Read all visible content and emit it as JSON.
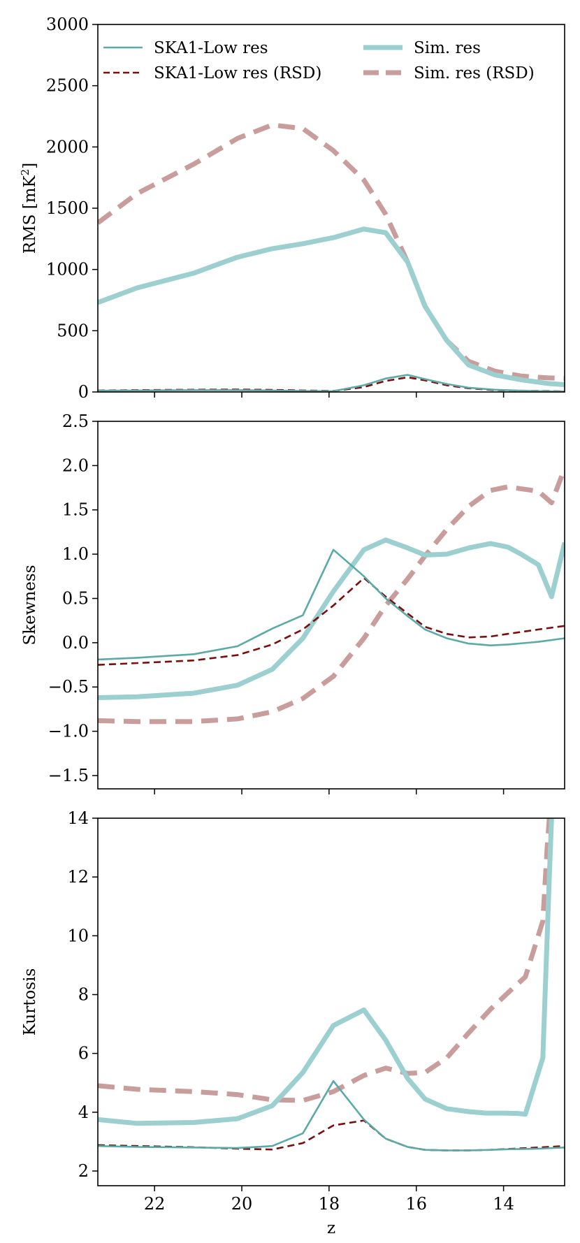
{
  "chart_data": {
    "type": "line",
    "x_label": "z",
    "x_range": [
      23.3,
      12.6
    ],
    "x_ticks": [
      22,
      20,
      18,
      16,
      14
    ],
    "legend": {
      "placement": "top",
      "entries": [
        {
          "label": "SKA1-Low res",
          "series": "ska"
        },
        {
          "label": "Sim. res",
          "series": "sim"
        },
        {
          "label": "SKA1-Low res (RSD)",
          "series": "ska_rsd"
        },
        {
          "label": "Sim. res (RSD)",
          "series": "sim_rsd"
        }
      ]
    },
    "styles": {
      "ska": {
        "color": "#5aaaa8",
        "dash": "",
        "width": 2.6
      },
      "ska_rsd": {
        "color": "#7b0d0d",
        "dash": "10,6",
        "width": 2.6
      },
      "sim": {
        "color": "#9ccfd0",
        "dash": "",
        "width": 7
      },
      "sim_rsd": {
        "color": "#c99d9b",
        "dash": "24,13",
        "width": 7
      }
    },
    "panels": [
      {
        "id": "rms",
        "ylabel_main": "RMS [mK",
        "ylabel_sup": "2",
        "ylabel_tail": "]",
        "ylim": [
          0,
          3000
        ],
        "yticks": [
          0,
          500,
          1000,
          1500,
          2000,
          2500,
          3000
        ],
        "series": [
          {
            "key": "sim_rsd",
            "x": [
              23.3,
              22.4,
              21.1,
              20.1,
              19.3,
              18.6,
              17.9,
              17.2,
              16.7,
              16.2,
              15.8,
              15.3,
              14.8,
              14.2,
              13.6,
              13.0,
              12.6
            ],
            "y": [
              1380,
              1620,
              1860,
              2070,
              2180,
              2150,
              1970,
              1730,
              1450,
              1060,
              700,
              420,
              250,
              170,
              130,
              115,
              110
            ]
          },
          {
            "key": "sim",
            "x": [
              23.3,
              22.4,
              21.1,
              20.1,
              19.3,
              18.6,
              17.9,
              17.2,
              16.7,
              16.2,
              15.8,
              15.3,
              14.8,
              14.2,
              13.6,
              13.0,
              12.6
            ],
            "y": [
              730,
              850,
              970,
              1100,
              1170,
              1210,
              1260,
              1330,
              1300,
              1060,
              700,
              420,
              220,
              140,
              100,
              70,
              60
            ]
          },
          {
            "key": "ska_rsd",
            "x": [
              23.3,
              22.4,
              21.1,
              20.1,
              19.3,
              18.6,
              17.9,
              17.2,
              16.7,
              16.2,
              15.8,
              15.3,
              14.8,
              14.2,
              13.6,
              13.0,
              12.6
            ],
            "y": [
              12,
              15,
              18,
              20,
              17,
              12,
              8,
              40,
              90,
              120,
              95,
              55,
              30,
              15,
              10,
              8,
              5
            ]
          },
          {
            "key": "ska",
            "x": [
              23.3,
              22.4,
              21.1,
              20.1,
              19.3,
              18.6,
              17.9,
              17.2,
              16.7,
              16.2,
              15.8,
              15.3,
              14.8,
              14.2,
              13.6,
              13.0,
              12.6
            ],
            "y": [
              10,
              12,
              15,
              15,
              12,
              8,
              6,
              55,
              110,
              140,
              105,
              65,
              35,
              18,
              10,
              6,
              4
            ]
          }
        ]
      },
      {
        "id": "skew",
        "ylabel_main": "Skewness",
        "ylim": [
          -1.65,
          2.5
        ],
        "yticks": [
          -1.5,
          -1.0,
          -0.5,
          0.0,
          0.5,
          1.0,
          1.5,
          2.0,
          2.5
        ],
        "series": [
          {
            "key": "sim_rsd",
            "x": [
              23.3,
              22.4,
              21.1,
              20.1,
              19.3,
              18.6,
              17.9,
              17.2,
              16.7,
              16.2,
              15.8,
              15.3,
              14.8,
              14.3,
              13.9,
              13.2,
              12.9,
              12.6
            ],
            "y": [
              -0.88,
              -0.89,
              -0.89,
              -0.86,
              -0.78,
              -0.63,
              -0.38,
              0.05,
              0.42,
              0.72,
              0.98,
              1.28,
              1.54,
              1.72,
              1.76,
              1.71,
              1.58,
              1.97
            ]
          },
          {
            "key": "sim",
            "x": [
              23.3,
              22.4,
              21.1,
              20.1,
              19.3,
              18.6,
              17.9,
              17.2,
              16.7,
              16.2,
              15.8,
              15.3,
              14.8,
              14.3,
              13.9,
              13.6,
              13.2,
              12.9,
              12.6
            ],
            "y": [
              -0.62,
              -0.61,
              -0.57,
              -0.48,
              -0.3,
              0.05,
              0.58,
              1.05,
              1.16,
              1.07,
              0.99,
              1.0,
              1.07,
              1.12,
              1.08,
              1.0,
              0.88,
              0.52,
              1.13
            ]
          },
          {
            "key": "ska_rsd",
            "x": [
              23.3,
              22.4,
              21.1,
              20.1,
              19.3,
              18.6,
              17.9,
              17.2,
              16.7,
              16.2,
              15.8,
              15.3,
              14.8,
              14.3,
              13.9,
              13.2,
              12.6
            ],
            "y": [
              -0.25,
              -0.23,
              -0.2,
              -0.14,
              -0.02,
              0.15,
              0.42,
              0.73,
              0.52,
              0.33,
              0.18,
              0.1,
              0.06,
              0.07,
              0.1,
              0.15,
              0.19
            ]
          },
          {
            "key": "ska",
            "x": [
              23.3,
              22.4,
              21.1,
              20.1,
              19.3,
              18.6,
              17.9,
              17.2,
              16.7,
              16.2,
              15.8,
              15.3,
              14.8,
              14.3,
              13.9,
              13.2,
              12.6
            ],
            "y": [
              -0.19,
              -0.17,
              -0.13,
              -0.04,
              0.16,
              0.31,
              1.05,
              0.75,
              0.5,
              0.3,
              0.15,
              0.05,
              -0.01,
              -0.03,
              -0.02,
              0.01,
              0.05
            ]
          }
        ]
      },
      {
        "id": "kurt",
        "ylabel_main": "Kurtosis",
        "ylim": [
          1.5,
          14
        ],
        "yticks": [
          2,
          4,
          6,
          8,
          10,
          12,
          14
        ],
        "series": [
          {
            "key": "sim_rsd",
            "x": [
              23.3,
              22.4,
              21.1,
              20.1,
              19.3,
              18.6,
              17.9,
              17.2,
              16.7,
              16.2,
              15.8,
              15.3,
              14.8,
              14.3,
              13.8,
              13.5,
              13.1,
              13.0,
              12.95
            ],
            "y": [
              4.9,
              4.78,
              4.7,
              4.6,
              4.42,
              4.4,
              4.7,
              5.25,
              5.5,
              5.32,
              5.35,
              5.85,
              6.7,
              7.5,
              8.2,
              8.6,
              10.5,
              13.0,
              14
            ]
          },
          {
            "key": "sim",
            "x": [
              23.3,
              22.4,
              21.1,
              20.1,
              19.3,
              18.6,
              17.9,
              17.2,
              16.7,
              16.2,
              15.8,
              15.3,
              14.8,
              14.4,
              14.0,
              13.7,
              13.5,
              13.1,
              12.95,
              12.9
            ],
            "y": [
              3.75,
              3.62,
              3.65,
              3.78,
              4.22,
              5.35,
              6.95,
              7.48,
              6.45,
              5.15,
              4.45,
              4.12,
              4.02,
              3.97,
              3.97,
              3.96,
              3.93,
              5.85,
              12.0,
              14
            ]
          },
          {
            "key": "ska_rsd",
            "x": [
              23.3,
              22.4,
              21.1,
              20.1,
              19.3,
              18.6,
              17.9,
              17.2,
              16.7,
              16.2,
              15.8,
              15.3,
              14.8,
              14.3,
              13.9,
              13.2,
              12.6
            ],
            "y": [
              2.88,
              2.85,
              2.81,
              2.76,
              2.73,
              2.95,
              3.55,
              3.72,
              3.1,
              2.82,
              2.72,
              2.7,
              2.7,
              2.72,
              2.75,
              2.8,
              2.85
            ]
          },
          {
            "key": "ska",
            "x": [
              23.3,
              22.4,
              21.1,
              20.1,
              19.3,
              18.6,
              17.9,
              17.2,
              16.7,
              16.2,
              15.8,
              15.3,
              14.8,
              14.3,
              13.9,
              13.2,
              12.6
            ],
            "y": [
              2.85,
              2.82,
              2.8,
              2.78,
              2.85,
              3.28,
              5.06,
              3.75,
              3.1,
              2.82,
              2.72,
              2.7,
              2.7,
              2.72,
              2.74,
              2.76,
              2.8
            ]
          }
        ]
      }
    ]
  }
}
